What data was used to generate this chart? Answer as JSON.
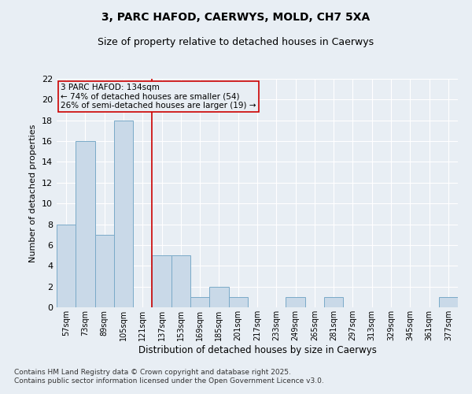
{
  "title1": "3, PARC HAFOD, CAERWYS, MOLD, CH7 5XA",
  "title2": "Size of property relative to detached houses in Caerwys",
  "xlabel": "Distribution of detached houses by size in Caerwys",
  "ylabel": "Number of detached properties",
  "categories": [
    "57sqm",
    "73sqm",
    "89sqm",
    "105sqm",
    "121sqm",
    "137sqm",
    "153sqm",
    "169sqm",
    "185sqm",
    "201sqm",
    "217sqm",
    "233sqm",
    "249sqm",
    "265sqm",
    "281sqm",
    "297sqm",
    "313sqm",
    "329sqm",
    "345sqm",
    "361sqm",
    "377sqm"
  ],
  "values": [
    8,
    16,
    7,
    18,
    0,
    5,
    5,
    1,
    2,
    1,
    0,
    0,
    1,
    0,
    1,
    0,
    0,
    0,
    0,
    0,
    1
  ],
  "bar_color": "#c9d9e8",
  "bar_edge_color": "#7aaac8",
  "subject_line_color": "#cc0000",
  "annotation_line1": "3 PARC HAFOD: 134sqm",
  "annotation_line2": "← 74% of detached houses are smaller (54)",
  "annotation_line3": "26% of semi-detached houses are larger (19) →",
  "annotation_box_color": "#cc0000",
  "ylim": [
    0,
    22
  ],
  "yticks": [
    0,
    2,
    4,
    6,
    8,
    10,
    12,
    14,
    16,
    18,
    20,
    22
  ],
  "bg_color": "#e8eef4",
  "grid_color": "#c8d8e8",
  "footer_line1": "Contains HM Land Registry data © Crown copyright and database right 2025.",
  "footer_line2": "Contains public sector information licensed under the Open Government Licence v3.0."
}
